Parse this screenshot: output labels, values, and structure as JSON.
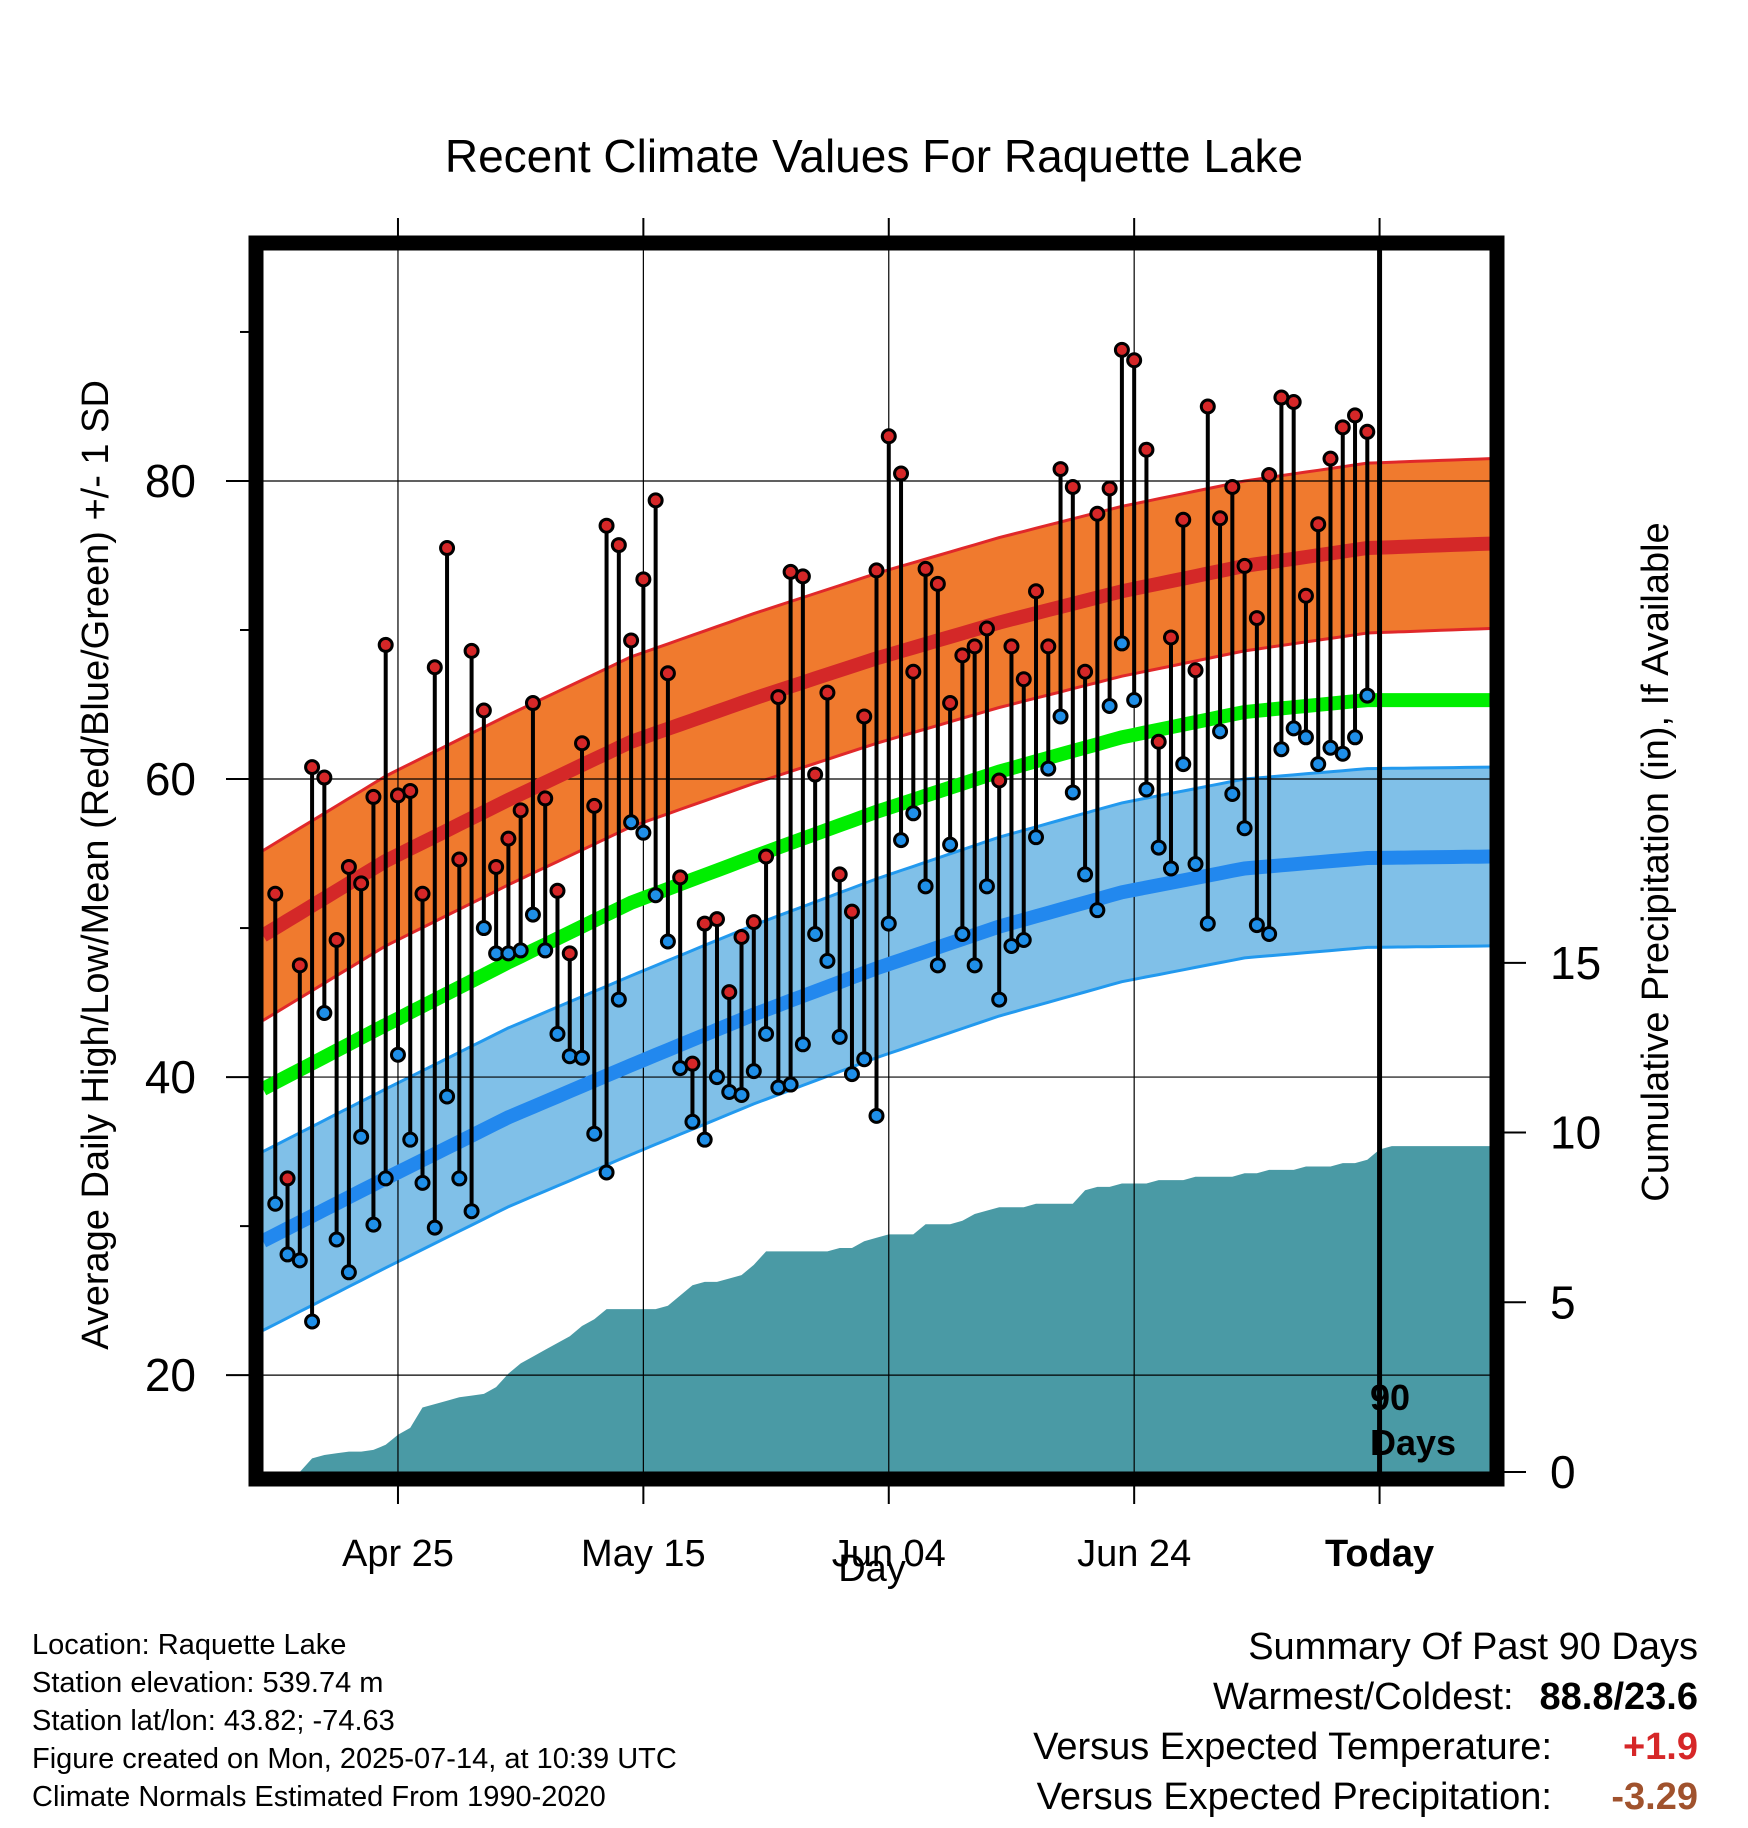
{
  "chart_data": {
    "type": "line",
    "title": "Recent Climate Values For Raquette Lake",
    "xlabel": "Day",
    "ylabel": "Average Daily High/Low/Mean (Red/Blue/Green) +/- 1 SD",
    "y2label": "Cumulative Precipitation (in), If Available",
    "x_tick_labels": [
      "Apr 25",
      "May 15",
      "Jun 04",
      "Jun 24",
      "Today"
    ],
    "x_tick_days": [
      11,
      31,
      51,
      71,
      91
    ],
    "ylim": [
      13.5,
      95.5
    ],
    "y_ticks": [
      20,
      40,
      60,
      80
    ],
    "y2lim": [
      0,
      36
    ],
    "y2_ticks": [
      0,
      5,
      10,
      15
    ],
    "xlim": [
      0,
      100
    ],
    "grid": true,
    "today_marker": {
      "day": 91,
      "label_line1": "90",
      "label_line2": "Days"
    },
    "normals": {
      "high_mean": {
        "x": [
          0,
          10,
          20,
          30,
          40,
          50,
          60,
          70,
          80,
          90,
          100
        ],
        "y": [
          49.5,
          54.5,
          58.6,
          62.5,
          65.4,
          68.1,
          70.5,
          72.6,
          74.3,
          75.5,
          75.8
        ]
      },
      "high_sd": 5.7,
      "low_mean": {
        "x": [
          0,
          10,
          20,
          30,
          40,
          50,
          60,
          70,
          80,
          90,
          100
        ],
        "y": [
          29,
          33.2,
          37.3,
          40.8,
          44.2,
          47.3,
          50.1,
          52.4,
          54.0,
          54.7,
          54.8
        ]
      },
      "low_sd": 6,
      "mean": {
        "x": [
          0,
          10,
          20,
          30,
          40,
          50,
          60,
          70,
          80,
          90,
          100
        ],
        "y": [
          39.2,
          43.5,
          47.7,
          51.7,
          54.8,
          57.8,
          60.5,
          62.8,
          64.5,
          65.3,
          65.3
        ]
      }
    },
    "series": [
      {
        "name": "High",
        "values": [
          52.3,
          33.2,
          47.5,
          60.8,
          60.1,
          49.2,
          54.1,
          53,
          58.8,
          69,
          58.9,
          59.2,
          52.3,
          67.5,
          75.5,
          54.6,
          68.6,
          64.6,
          54.1,
          56,
          57.9,
          65.1,
          58.7,
          52.5,
          48.3,
          62.4,
          58.2,
          77,
          75.7,
          69.3,
          73.4,
          78.7,
          67.1,
          53.4,
          40.9,
          50.3,
          50.6,
          45.7,
          49.4,
          50.4,
          54.8,
          65.5,
          73.9,
          73.6,
          60.3,
          65.8,
          53.6,
          51.1,
          64.2,
          74,
          83,
          80.5,
          67.2,
          74.1,
          73.1,
          65.1,
          68.3,
          68.9,
          70.1,
          59.9,
          68.9,
          66.7,
          72.6,
          68.9,
          80.8,
          79.6,
          67.2,
          77.8,
          79.5,
          88.8,
          88.1,
          82.1,
          62.5,
          69.5,
          77.4,
          67.3,
          85,
          77.5,
          79.6,
          74.3,
          70.8,
          80.4,
          85.6,
          85.3,
          72.3,
          77.1,
          81.5,
          83.6,
          84.4,
          83.3
        ]
      },
      {
        "name": "Low",
        "values": [
          31.5,
          28.1,
          27.7,
          23.6,
          44.3,
          29.1,
          26.9,
          36,
          30.1,
          33.2,
          41.5,
          35.8,
          32.9,
          29.9,
          38.7,
          33.2,
          31,
          50,
          48.3,
          48.3,
          48.5,
          50.9,
          48.5,
          42.9,
          41.4,
          41.3,
          36.2,
          33.6,
          45.2,
          57.1,
          56.4,
          52.2,
          49.1,
          40.6,
          37,
          35.8,
          40,
          39,
          38.8,
          40.4,
          42.9,
          39.3,
          39.5,
          42.2,
          49.6,
          47.8,
          42.7,
          40.2,
          41.2,
          37.4,
          50.3,
          55.9,
          57.7,
          52.8,
          47.5,
          55.6,
          49.6,
          47.5,
          52.8,
          45.2,
          48.8,
          49.2,
          56.1,
          60.7,
          64.2,
          59.1,
          53.6,
          51.2,
          64.9,
          69.1,
          65.3,
          59.3,
          55.4,
          54,
          61,
          54.3,
          50.3,
          63.2,
          59,
          56.7,
          50.2,
          49.6,
          62,
          63.4,
          62.8,
          61,
          62.1,
          61.7,
          62.8,
          65.6
        ]
      },
      {
        "name": "Cumulative Precipitation",
        "x": [
          0,
          3,
          4,
          5,
          6,
          7,
          8,
          9,
          10,
          11,
          12,
          13,
          14,
          15,
          16,
          17,
          18,
          19,
          20,
          21,
          22,
          23,
          24,
          25,
          26,
          27,
          28,
          29,
          30,
          31,
          32,
          33,
          34,
          35,
          36,
          37,
          38,
          39,
          40,
          41,
          42,
          43,
          44,
          45,
          46,
          47,
          48,
          49,
          50,
          51,
          52,
          53,
          54,
          55,
          56,
          57,
          58,
          59,
          60,
          61,
          62,
          63,
          64,
          65,
          66,
          67,
          68,
          69,
          70,
          71,
          72,
          73,
          74,
          75,
          76,
          77,
          78,
          79,
          80,
          81,
          82,
          83,
          84,
          85,
          86,
          87,
          88,
          89,
          90,
          91,
          92,
          93,
          94,
          95,
          96,
          97,
          98,
          99,
          100
        ],
        "values": [
          0,
          0,
          0.4,
          0.5,
          0.55,
          0.6,
          0.6,
          0.65,
          0.8,
          1.1,
          1.3,
          1.9,
          2.0,
          2.1,
          2.2,
          2.25,
          2.3,
          2.5,
          2.9,
          3.2,
          3.4,
          3.6,
          3.8,
          4.0,
          4.3,
          4.5,
          4.8,
          4.8,
          4.8,
          4.8,
          4.8,
          4.9,
          5.2,
          5.5,
          5.6,
          5.6,
          5.7,
          5.8,
          6.1,
          6.5,
          6.5,
          6.5,
          6.5,
          6.5,
          6.5,
          6.6,
          6.6,
          6.8,
          6.9,
          7.0,
          7.0,
          7.0,
          7.3,
          7.3,
          7.3,
          7.4,
          7.6,
          7.7,
          7.8,
          7.8,
          7.8,
          7.9,
          7.9,
          7.9,
          7.9,
          8.3,
          8.4,
          8.4,
          8.5,
          8.5,
          8.5,
          8.6,
          8.6,
          8.6,
          8.7,
          8.7,
          8.7,
          8.7,
          8.8,
          8.8,
          8.9,
          8.9,
          8.9,
          9.0,
          9.0,
          9.0,
          9.1,
          9.1,
          9.2,
          9.5,
          9.6,
          9.6,
          9.6,
          9.6,
          9.6,
          9.6,
          9.6,
          9.6,
          9.6
        ]
      }
    ]
  },
  "colors": {
    "high_band": "#F07A2E",
    "high_edge": "#E0282A",
    "high_mean": "#D42828",
    "low_band": "#80C0E8",
    "low_edge": "#2299EE",
    "low_mean": "#2288EE",
    "mean_line": "#00EE00",
    "precip": "#4A9AA5",
    "high_dot": "#D62728",
    "low_dot": "#1F8FE8",
    "warm": "#D62728",
    "dry": "#A0522D"
  },
  "info": {
    "location": "Location: Raquette Lake",
    "elevation": "Station elevation: 539.74 m",
    "latlon": "Station lat/lon: 43.82; -74.63",
    "created": "Figure created on Mon, 2025-07-14, at 10:39 UTC",
    "normals": "Climate Normals Estimated From 1990-2020"
  },
  "summary": {
    "title": "Summary Of Past 90 Days",
    "warmest_coldest_label": "Warmest/Coldest:",
    "warmest_coldest_value": "88.8/23.6",
    "temp_label": "Versus Expected Temperature:",
    "temp_value": "+1.9",
    "precip_label": "Versus Expected Precipitation:",
    "precip_value": "-3.29"
  }
}
